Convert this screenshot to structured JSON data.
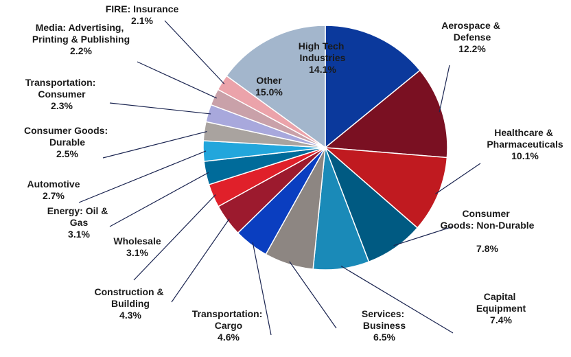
{
  "chart_data": {
    "type": "pie",
    "categories": [
      "High Tech Industries",
      "Aerospace & Defense",
      "Healthcare & Pharmaceuticals",
      "Consumer Goods: Non-Durable",
      "Capital Equipment",
      "Services: Business",
      "Transportation: Cargo",
      "Construction & Building",
      "Wholesale",
      "Energy: Oil & Gas",
      "Automotive",
      "Consumer Goods: Durable",
      "Transportation: Consumer",
      "Media: Advertising, Printing & Publishing",
      "FIRE: Insurance",
      "Other"
    ],
    "values": [
      14.1,
      12.2,
      10.1,
      7.8,
      7.4,
      6.5,
      4.6,
      4.3,
      3.1,
      3.1,
      2.7,
      2.5,
      2.3,
      2.2,
      2.1,
      15.0
    ],
    "value_labels": [
      "14.1%",
      "12.2%",
      "10.1%",
      "7.8%",
      "7.4%",
      "6.5%",
      "4.6%",
      "4.3%",
      "3.1%",
      "3.1%",
      "2.7%",
      "2.5%",
      "2.3%",
      "2.2%",
      "2.1%",
      "15.0%"
    ],
    "colors": [
      "#0b399c",
      "#7a1022",
      "#c01a20",
      "#005a82",
      "#1a8ab8",
      "#8d8682",
      "#0a3ec0",
      "#9c1a2e",
      "#e0202a",
      "#006b9a",
      "#22a6dc",
      "#a9a39f",
      "#a8a8dc",
      "#c9a1a9",
      "#eba3aa",
      "#a3b6cc"
    ]
  }
}
